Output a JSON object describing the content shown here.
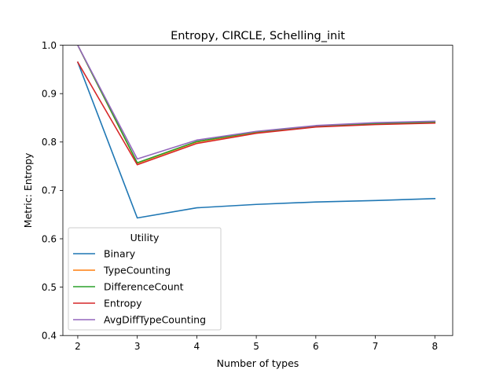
{
  "chart_data": {
    "type": "line",
    "title": "Entropy, CIRCLE, Schelling_init",
    "xlabel": "Number of types",
    "ylabel": "Metric: Entropy",
    "x": [
      2,
      3,
      4,
      5,
      6,
      7,
      8
    ],
    "xlim": [
      1.75,
      8.3
    ],
    "ylim": [
      0.4,
      1.0
    ],
    "x_ticks": [
      "2",
      "3",
      "4",
      "5",
      "6",
      "7",
      "8"
    ],
    "y_ticks": [
      "0.4",
      "0.5",
      "0.6",
      "0.7",
      "0.8",
      "0.9",
      "1.0"
    ],
    "grid": false,
    "legend": {
      "title": "Utility",
      "placement": "lower-left"
    },
    "series": [
      {
        "name": "Binary",
        "color": "#1f77b4",
        "values": [
          0.965,
          0.643,
          0.664,
          0.671,
          0.676,
          0.679,
          0.683
        ]
      },
      {
        "name": "TypeCounting",
        "color": "#ff7f0e",
        "values": [
          1.0,
          0.756,
          0.8,
          0.82,
          0.832,
          0.838,
          0.841
        ]
      },
      {
        "name": "DifferenceCount",
        "color": "#2ca02c",
        "values": [
          1.0,
          0.757,
          0.801,
          0.821,
          0.833,
          0.838,
          0.841
        ]
      },
      {
        "name": "Entropy",
        "color": "#d62728",
        "values": [
          0.965,
          0.753,
          0.797,
          0.818,
          0.831,
          0.836,
          0.839
        ]
      },
      {
        "name": "AvgDiffTypeCounting",
        "color": "#9467bd",
        "values": [
          1.0,
          0.765,
          0.804,
          0.822,
          0.834,
          0.84,
          0.843
        ]
      }
    ]
  }
}
